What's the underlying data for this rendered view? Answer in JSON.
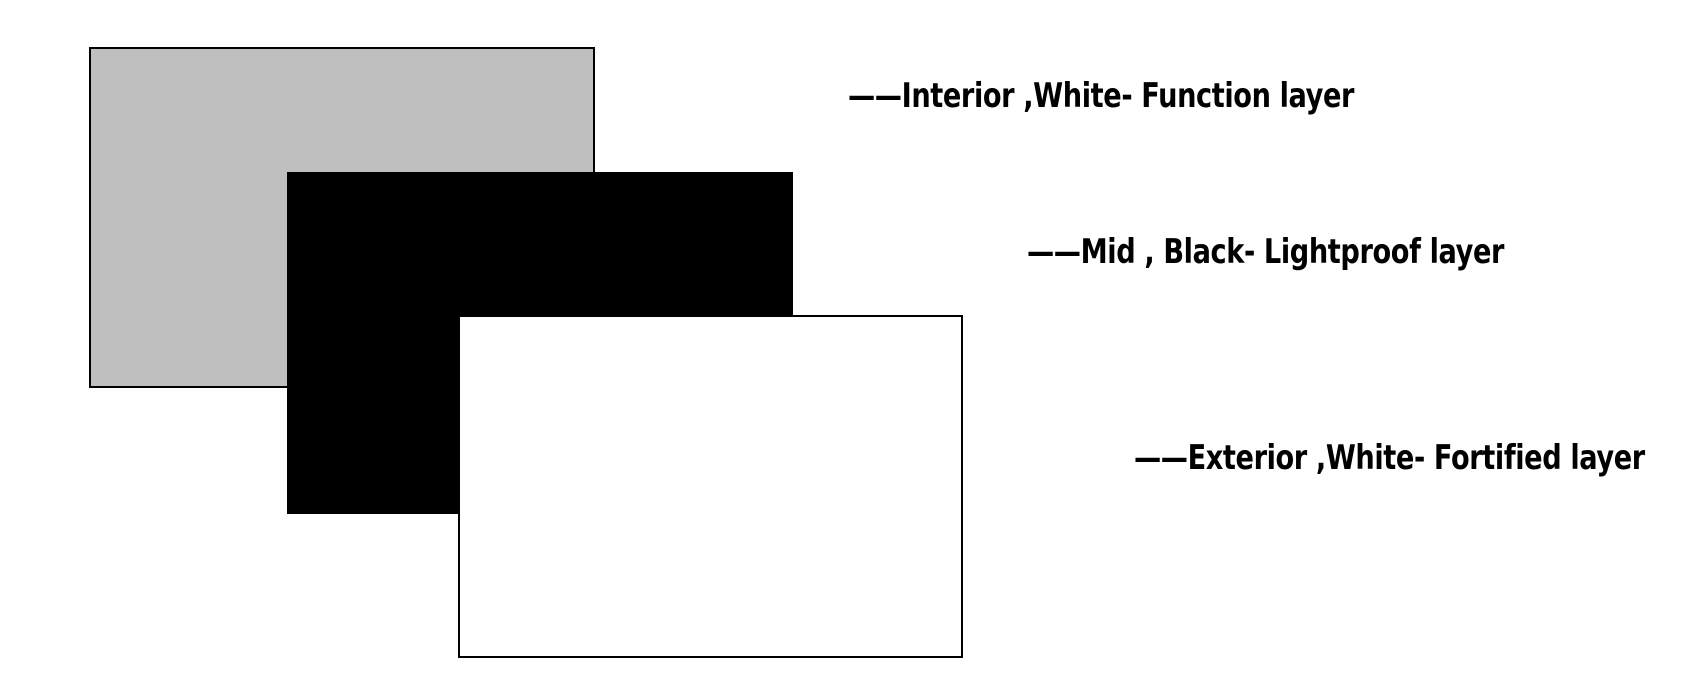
{
  "layers": [
    {
      "label": "——Interior ,White- Function layer",
      "fill": "#bfbfbf"
    },
    {
      "label": "——Mid , Black- Lightproof layer",
      "fill": "#000000"
    },
    {
      "label": "——Exterior ,White-  Fortified layer",
      "fill": "#ffffff"
    }
  ]
}
